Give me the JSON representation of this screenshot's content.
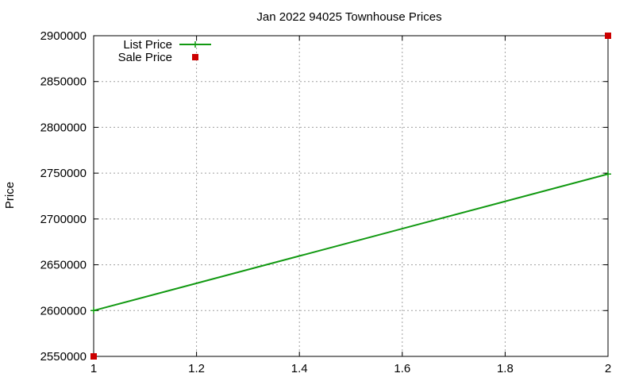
{
  "chart_data": {
    "type": "line",
    "title": "Jan 2022 94025 Townhouse Prices",
    "xlabel": "",
    "ylabel": "Price",
    "xlim": [
      1,
      2
    ],
    "ylim": [
      2550000,
      2900000
    ],
    "x_ticks": [
      "1",
      "1.2",
      "1.4",
      "1.6",
      "1.8",
      "2"
    ],
    "y_ticks": [
      "2550000",
      "2600000",
      "2650000",
      "2700000",
      "2750000",
      "2800000",
      "2850000",
      "2900000"
    ],
    "grid": true,
    "legend_position": "top-left",
    "series": [
      {
        "name": "List Price",
        "style": "linespoints",
        "color": "#119911",
        "points": [
          {
            "x": 1,
            "y": 2600000
          },
          {
            "x": 2,
            "y": 2749000
          }
        ]
      },
      {
        "name": "Sale Price",
        "style": "points",
        "color": "#cc0000",
        "points": [
          {
            "x": 1,
            "y": 2550000
          },
          {
            "x": 2,
            "y": 2900000
          }
        ]
      }
    ]
  }
}
